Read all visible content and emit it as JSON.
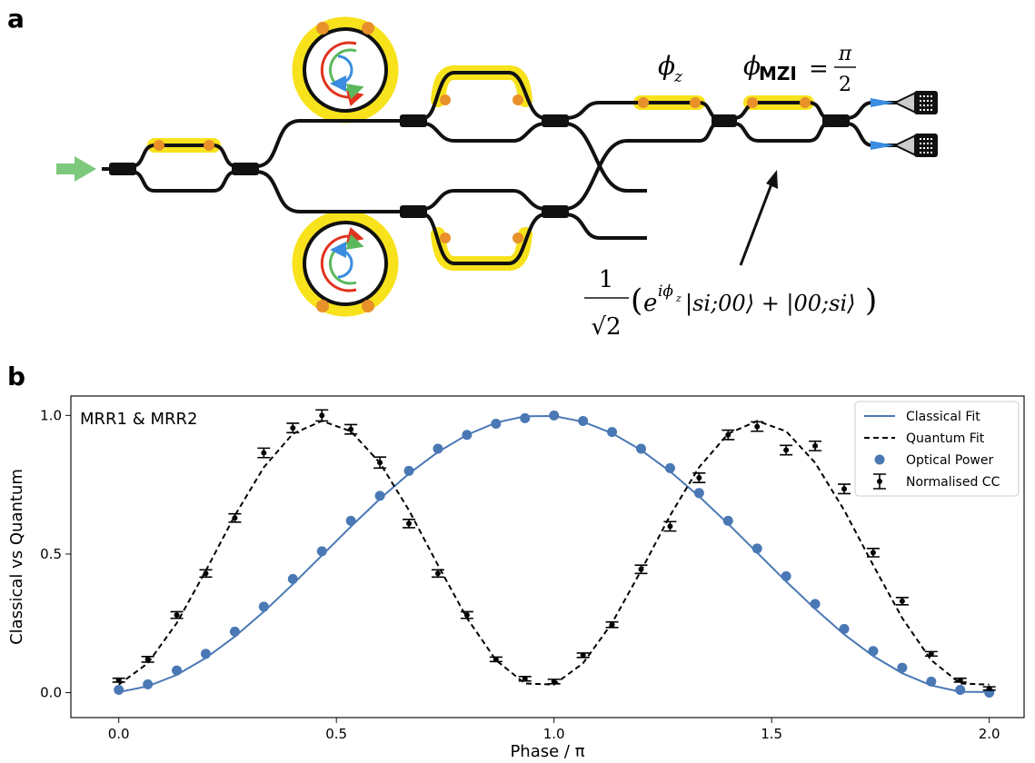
{
  "panel_labels": {
    "a": "a",
    "b": "b"
  },
  "diagram": {
    "phi_z": {
      "symbol": "ϕ",
      "subscript": "z"
    },
    "phi_mzi": {
      "symbol": "ϕ",
      "subscript": "MZI",
      "equals": "=",
      "numerator": "π",
      "denominator": "2"
    },
    "state": {
      "numerator": "1",
      "denominator": "√2",
      "open": "(",
      "base": "e",
      "sup": "iϕ",
      "sup_sub": "z",
      "kets": "|si;00⟩ + |00;si⟩",
      "close": ")"
    }
  },
  "chart_data": {
    "type": "line",
    "annotation": "MRR1 & MRR2",
    "xlabel": "Phase / π",
    "ylabel": "Classical vs Quantum",
    "xlim": [
      -0.11,
      2.08
    ],
    "ylim": [
      -0.09,
      1.07
    ],
    "xticks": [
      {
        "value": 0,
        "label": "0.0"
      },
      {
        "value": 0.5,
        "label": "0.5"
      },
      {
        "value": 1,
        "label": "1.0"
      },
      {
        "value": 1.5,
        "label": "1.5"
      },
      {
        "value": 2,
        "label": "2.0"
      }
    ],
    "yticks": [
      {
        "value": 0,
        "label": "0.0"
      },
      {
        "value": 0.5,
        "label": "0.5"
      },
      {
        "value": 1,
        "label": "1.0"
      }
    ],
    "legend": "upper right",
    "x": [
      0,
      0.0667,
      0.1333,
      0.2,
      0.2667,
      0.3333,
      0.4,
      0.4667,
      0.5333,
      0.6,
      0.6667,
      0.7333,
      0.8,
      0.8667,
      0.9333,
      1,
      1.0667,
      1.1333,
      1.2,
      1.2667,
      1.3333,
      1.4,
      1.4667,
      1.5333,
      1.6,
      1.6667,
      1.7333,
      1.8,
      1.8667,
      1.9333,
      2
    ],
    "series": [
      {
        "name": "Classical Fit",
        "color": "#4a78b5",
        "style": "solid",
        "values": [
          0.002,
          0.023,
          0.064,
          0.125,
          0.202,
          0.292,
          0.391,
          0.495,
          0.599,
          0.699,
          0.79,
          0.868,
          0.93,
          0.974,
          0.997,
          0.998,
          0.977,
          0.936,
          0.875,
          0.798,
          0.708,
          0.609,
          0.505,
          0.401,
          0.302,
          0.21,
          0.132,
          0.07,
          0.026,
          0.003,
          0.002
        ]
      },
      {
        "name": "Quantum Fit",
        "color": "#000000",
        "style": "dashed",
        "values": [
          0.029,
          0.106,
          0.251,
          0.44,
          0.639,
          0.813,
          0.934,
          0.98,
          0.943,
          0.829,
          0.658,
          0.46,
          0.269,
          0.117,
          0.033,
          0.029,
          0.106,
          0.251,
          0.44,
          0.639,
          0.813,
          0.934,
          0.98,
          0.943,
          0.829,
          0.658,
          0.46,
          0.269,
          0.117,
          0.033,
          0.029
        ]
      },
      {
        "name": "Optical Power",
        "color": "#4a78b5",
        "style": "markers",
        "values": [
          0.01,
          0.03,
          0.08,
          0.14,
          0.22,
          0.31,
          0.41,
          0.51,
          0.62,
          0.71,
          0.8,
          0.88,
          0.93,
          0.97,
          0.99,
          1.0,
          0.98,
          0.94,
          0.88,
          0.81,
          0.72,
          0.62,
          0.52,
          0.42,
          0.32,
          0.23,
          0.15,
          0.09,
          0.04,
          0.01,
          0.0
        ]
      },
      {
        "name": "Normalised CC",
        "color": "#000000",
        "style": "errorbar",
        "values": [
          0.045,
          0.12,
          0.28,
          0.43,
          0.63,
          0.865,
          0.955,
          1.0,
          0.95,
          0.83,
          0.61,
          0.43,
          0.28,
          0.12,
          0.05,
          0.04,
          0.135,
          0.245,
          0.445,
          0.6,
          0.775,
          0.93,
          0.96,
          0.875,
          0.89,
          0.735,
          0.505,
          0.33,
          0.14,
          0.045,
          0.015
        ],
        "errors": [
          0.007,
          0.01,
          0.012,
          0.013,
          0.015,
          0.017,
          0.017,
          0.02,
          0.017,
          0.02,
          0.015,
          0.013,
          0.012,
          0.008,
          0.008,
          0.008,
          0.008,
          0.01,
          0.015,
          0.017,
          0.017,
          0.017,
          0.017,
          0.017,
          0.017,
          0.017,
          0.015,
          0.013,
          0.008,
          0.007,
          0.006
        ]
      }
    ]
  }
}
